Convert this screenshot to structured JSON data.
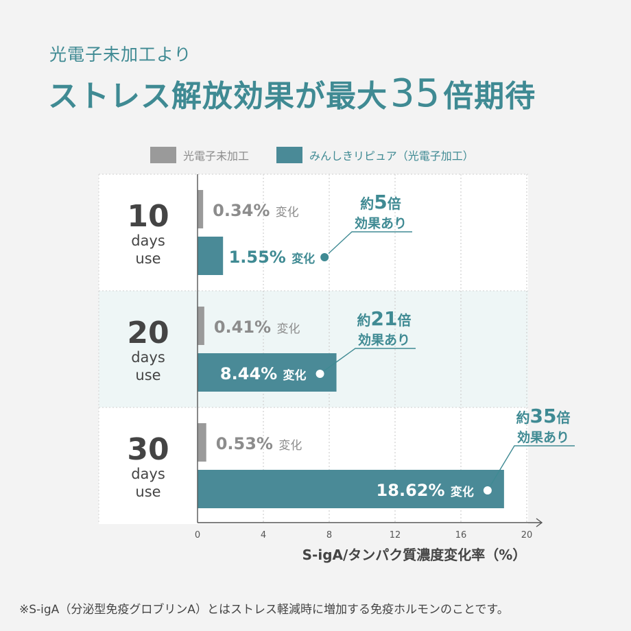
{
  "header": {
    "subtitle": "光電子未加工より",
    "title_pre": "ストレス解放効果が最大",
    "title_num": "35",
    "title_post": "倍期待"
  },
  "legend": {
    "gray_label": "光電子未加工",
    "teal_label": "みんしきリピュア（光電子加工）"
  },
  "colors": {
    "gray_bar": "#9a9a9a",
    "teal_bar": "#4a8a97",
    "teal_text": "#3f8a93",
    "row_white": "#ffffff",
    "row_tint": "#eef6f6"
  },
  "chart_data": {
    "type": "bar",
    "orientation": "horizontal",
    "categories": [
      {
        "num": "10",
        "unit1": "days",
        "unit2": "use"
      },
      {
        "num": "20",
        "unit1": "days",
        "unit2": "use"
      },
      {
        "num": "30",
        "unit1": "days",
        "unit2": "use"
      }
    ],
    "series": [
      {
        "name": "光電子未加工",
        "values": [
          0.34,
          0.41,
          0.53
        ]
      },
      {
        "name": "みんしきリピュア（光電子加工）",
        "values": [
          1.55,
          8.44,
          18.62
        ]
      }
    ],
    "value_labels": [
      [
        "0.34%",
        "0.41%",
        "0.53%"
      ],
      [
        "1.55%",
        "8.44%",
        "18.62%"
      ]
    ],
    "change_suffix": "変化",
    "callouts": [
      {
        "prefix": "約",
        "num": "5",
        "suffix": "倍",
        "line2": "効果あり"
      },
      {
        "prefix": "約",
        "num": "21",
        "suffix": "倍",
        "line2": "効果あり"
      },
      {
        "prefix": "約",
        "num": "35",
        "suffix": "倍",
        "line2": "効果あり"
      }
    ],
    "xlim": [
      0,
      20
    ],
    "xticks": [
      "0",
      "4",
      "8",
      "12",
      "16",
      "20"
    ],
    "xlabel": "S-igA/タンパク質濃度変化率（%）",
    "grid": true
  },
  "footnote": "※S-igA（分泌型免疫グロブリンA）とはストレス軽減時に増加する免疫ホルモンのことです。"
}
